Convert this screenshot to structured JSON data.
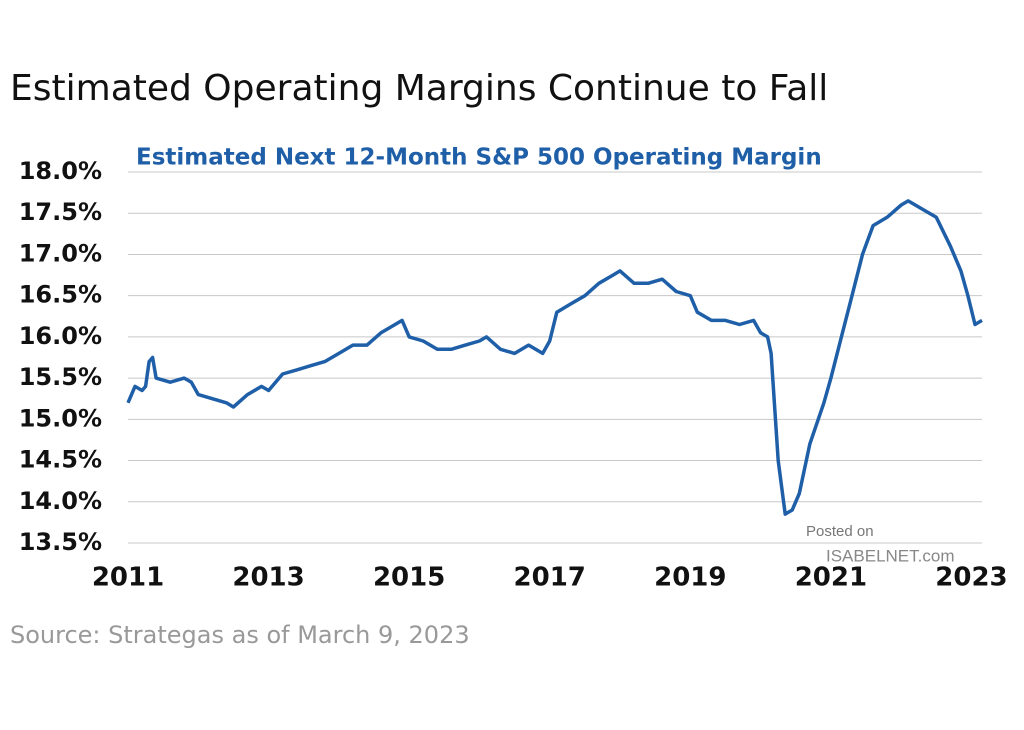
{
  "chart_data": {
    "type": "line",
    "title": "Estimated Operating Margins Continue to Fall",
    "subtitle": "Estimated Next 12-Month S&P 500 Operating Margin",
    "source": "Source: Strategas as of March 9, 2023",
    "annotations": [
      "Posted on",
      "ISABELNET.com"
    ],
    "x": [
      2011.0,
      2011.1,
      2011.2,
      2011.25,
      2011.3,
      2011.35,
      2011.4,
      2011.6,
      2011.8,
      2011.9,
      2012.0,
      2012.2,
      2012.4,
      2012.5,
      2012.7,
      2012.9,
      2013.0,
      2013.2,
      2013.4,
      2013.6,
      2013.8,
      2014.0,
      2014.2,
      2014.4,
      2014.6,
      2014.8,
      2014.9,
      2015.0,
      2015.2,
      2015.4,
      2015.6,
      2015.8,
      2016.0,
      2016.1,
      2016.3,
      2016.5,
      2016.7,
      2016.9,
      2017.0,
      2017.1,
      2017.3,
      2017.5,
      2017.7,
      2017.9,
      2018.0,
      2018.2,
      2018.4,
      2018.6,
      2018.8,
      2019.0,
      2019.1,
      2019.3,
      2019.5,
      2019.7,
      2019.9,
      2020.0,
      2020.1,
      2020.15,
      2020.25,
      2020.35,
      2020.45,
      2020.55,
      2020.7,
      2020.9,
      2021.0,
      2021.15,
      2021.3,
      2021.45,
      2021.6,
      2021.8,
      2022.0,
      2022.1,
      2022.3,
      2022.5,
      2022.7,
      2022.85,
      2022.95,
      2023.05,
      2023.15
    ],
    "series": [
      {
        "name": "Estimated Next 12-Month S&P 500 Operating Margin",
        "color": "#1f5fa8",
        "values": [
          15.2,
          15.4,
          15.35,
          15.4,
          15.7,
          15.75,
          15.5,
          15.45,
          15.5,
          15.45,
          15.3,
          15.25,
          15.2,
          15.15,
          15.3,
          15.4,
          15.35,
          15.55,
          15.6,
          15.65,
          15.7,
          15.8,
          15.9,
          15.9,
          16.05,
          16.15,
          16.2,
          16.0,
          15.95,
          15.85,
          15.85,
          15.9,
          15.95,
          16.0,
          15.85,
          15.8,
          15.9,
          15.8,
          15.95,
          16.3,
          16.4,
          16.5,
          16.65,
          16.75,
          16.8,
          16.65,
          16.65,
          16.7,
          16.55,
          16.5,
          16.3,
          16.2,
          16.2,
          16.15,
          16.2,
          16.05,
          16.0,
          15.8,
          14.5,
          13.85,
          13.9,
          14.1,
          14.7,
          15.2,
          15.5,
          16.0,
          16.5,
          17.0,
          17.35,
          17.45,
          17.6,
          17.65,
          17.55,
          17.45,
          17.1,
          16.8,
          16.5,
          16.15,
          16.2
        ]
      }
    ],
    "xlim": [
      2011,
      2023.15
    ],
    "xticks": [
      2011,
      2013,
      2015,
      2017,
      2019,
      2021,
      2023
    ],
    "ylim": [
      13.5,
      18.0
    ],
    "yticks": [
      {
        "value": 13.5,
        "label": "13.5%"
      },
      {
        "value": 14.0,
        "label": "14.0%"
      },
      {
        "value": 14.5,
        "label": "14.5%"
      },
      {
        "value": 15.0,
        "label": "15.0%"
      },
      {
        "value": 15.5,
        "label": "15.5%"
      },
      {
        "value": 16.0,
        "label": "16.0%"
      },
      {
        "value": 16.5,
        "label": "16.5%"
      },
      {
        "value": 17.0,
        "label": "17.0%"
      },
      {
        "value": 17.5,
        "label": "17.5%"
      },
      {
        "value": 18.0,
        "label": "18.0%"
      }
    ],
    "grid": true
  }
}
